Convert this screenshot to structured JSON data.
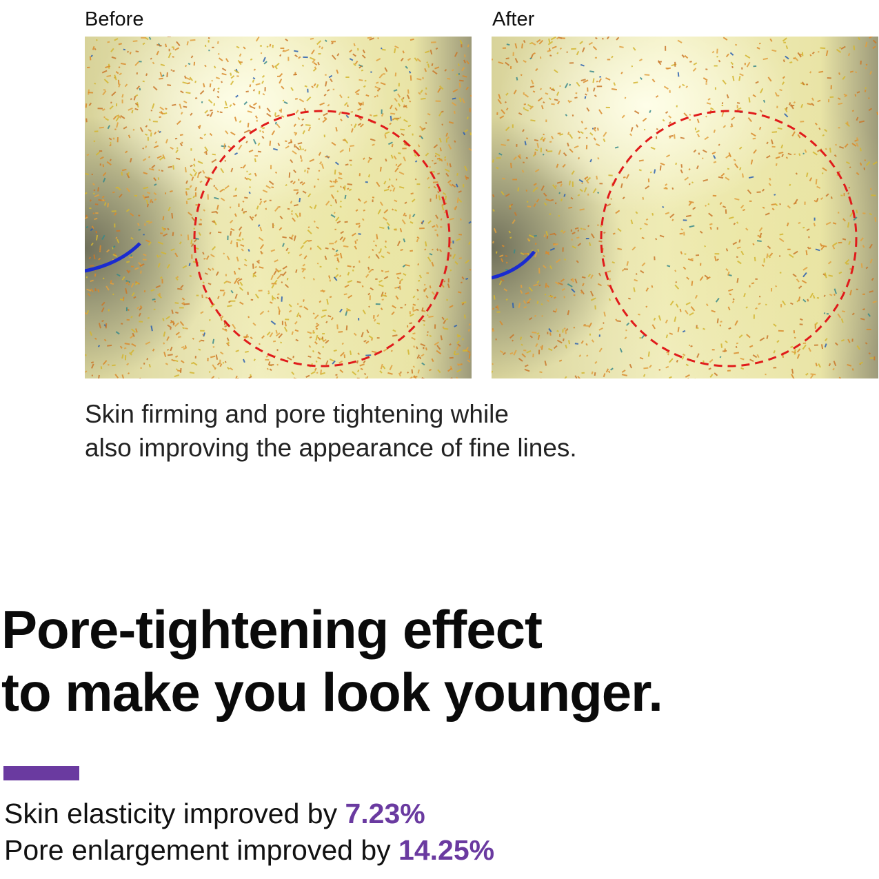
{
  "comparison": {
    "before_label": "Before",
    "after_label": "After"
  },
  "caption": {
    "line1": "Skin firming and pore tightening while",
    "line2": "also improving the appearance of fine lines."
  },
  "headline": {
    "line1": "Pore-tightening effect",
    "line2": "to make you look younger."
  },
  "stats": [
    {
      "label": "Skin elasticity improved by ",
      "value": "7.23%"
    },
    {
      "label": "Pore enlargement improved by ",
      "value": "14.25%"
    }
  ],
  "colors": {
    "accent": "#6a3aa0",
    "circle": "#e01b1b"
  }
}
